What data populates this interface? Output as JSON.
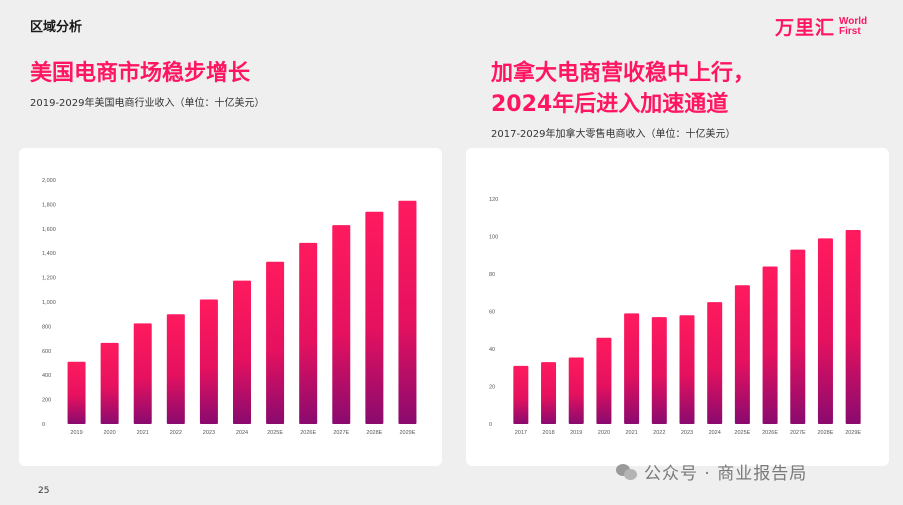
{
  "header": {
    "section_label": "区域分析",
    "brand_cn": "万里汇",
    "brand_en": "World First"
  },
  "left": {
    "title": "美国电商市场稳步增长",
    "subtitle": "2019-2029年美国电商行业收入（单位：十亿美元）"
  },
  "right": {
    "title_line1": "加拿大电商营收稳中上行，",
    "title_line2": "2024年后进入加速通道",
    "subtitle": "2017-2029年加拿大零售电商收入（单位：十亿美元）"
  },
  "footer": {
    "page_number": "25",
    "watermark": "公众号 · 商业报告局"
  },
  "colors": {
    "accent": "#ff1560",
    "bar_top": "#ff1a5e",
    "bar_mid": "#e5115f",
    "bar_bottom": "#8a0a6e"
  },
  "chart_data": [
    {
      "type": "bar",
      "categories": [
        "2019",
        "2020",
        "2021",
        "2022",
        "2023",
        "2024",
        "2025E",
        "2026E",
        "2027E",
        "2028E",
        "2029E"
      ],
      "values": [
        510,
        665,
        825,
        900,
        1020,
        1175,
        1330,
        1485,
        1630,
        1740,
        1830
      ],
      "ylim": [
        0,
        2000
      ],
      "yticks": [
        0,
        200,
        400,
        600,
        800,
        1000,
        1200,
        1400,
        1600,
        1800,
        2000
      ],
      "ytick_labels": [
        "0",
        "200",
        "400",
        "600",
        "800",
        "1,000",
        "1,200",
        "1,400",
        "1,600",
        "1,800",
        "2,000"
      ],
      "grid": false
    },
    {
      "type": "bar",
      "categories": [
        "2017",
        "2018",
        "2019",
        "2020",
        "2021",
        "2022",
        "2023",
        "2024",
        "2025E",
        "2026E",
        "2027E",
        "2028E",
        "2029E"
      ],
      "values": [
        31,
        33,
        35.5,
        46,
        59,
        57,
        58,
        65,
        74,
        84,
        93,
        99,
        103.5
      ],
      "ylim": [
        0,
        120
      ],
      "yticks": [
        0,
        20,
        40,
        60,
        80,
        100,
        120
      ],
      "ytick_labels": [
        "0",
        "20",
        "40",
        "60",
        "80",
        "100",
        "120"
      ],
      "grid": false
    }
  ]
}
